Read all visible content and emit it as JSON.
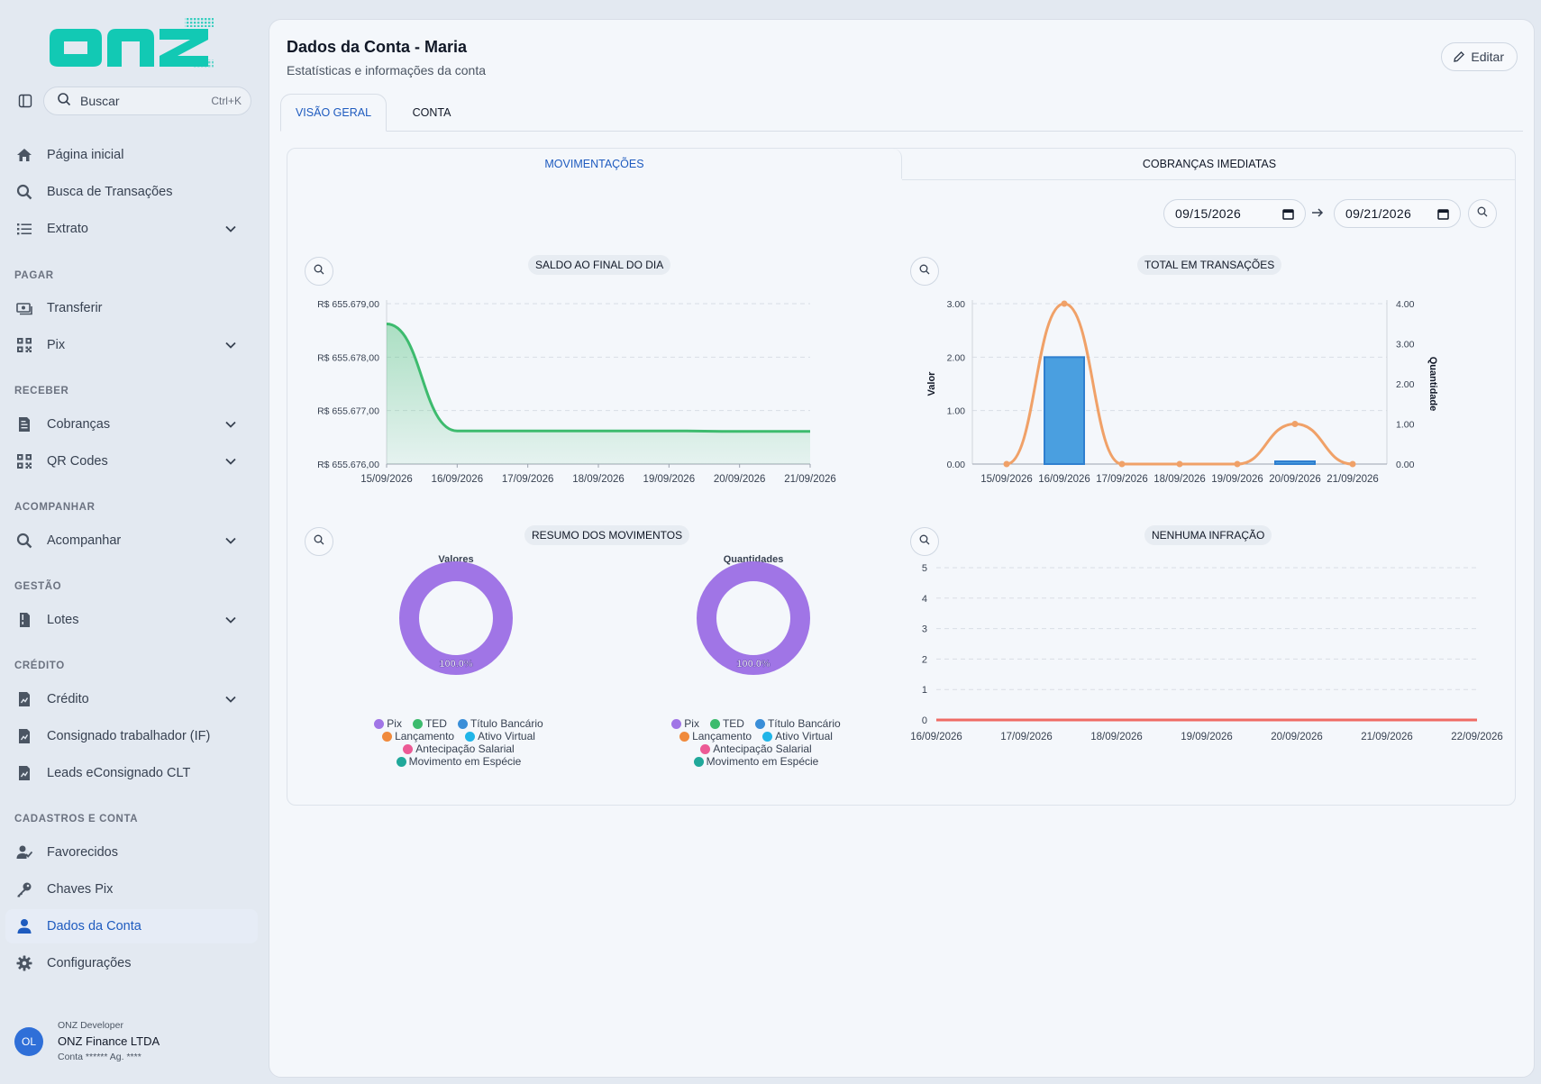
{
  "app": {
    "logo_text": "onz"
  },
  "search": {
    "placeholder": "Buscar",
    "shortcut": "Ctrl+K"
  },
  "sidebar": {
    "items": [
      {
        "label": "Página inicial",
        "icon": "home-icon"
      },
      {
        "label": "Busca de Transações",
        "icon": "search-icon"
      },
      {
        "label": "Extrato",
        "icon": "list-icon"
      },
      {
        "label": "Transferir",
        "icon": "money-transfer-icon"
      },
      {
        "label": "Pix",
        "icon": "qr-code-icon"
      },
      {
        "label": "Cobranças",
        "icon": "invoice-icon"
      },
      {
        "label": "QR Codes",
        "icon": "qr-code-icon"
      },
      {
        "label": "Acompanhar",
        "icon": "search-icon"
      },
      {
        "label": "Lotes",
        "icon": "file-stack-icon"
      },
      {
        "label": "Crédito",
        "icon": "credit-document-icon"
      },
      {
        "label": "Consignado trabalhador (IF)",
        "icon": "document-icon"
      },
      {
        "label": "Leads eConsignado CLT",
        "icon": "document-icon"
      },
      {
        "label": "Favorecidos",
        "icon": "user-check-icon"
      },
      {
        "label": "Chaves Pix",
        "icon": "key-icon"
      },
      {
        "label": "Dados da Conta",
        "icon": "user-icon"
      },
      {
        "label": "Configurações",
        "icon": "gear-icon"
      }
    ],
    "sections": [
      "PAGAR",
      "RECEBER",
      "ACOMPANHAR",
      "GESTÃO",
      "CRÉDITO",
      "CADASTROS E CONTA"
    ],
    "active": "Dados da Conta"
  },
  "user": {
    "initials": "OL",
    "role": "ONZ Developer",
    "org": "ONZ Finance LTDA",
    "account": "Conta ****** Ag. ****"
  },
  "header": {
    "title": "Dados da Conta - Maria",
    "subtitle": "Estatísticas e informações da conta",
    "edit_label": "Editar"
  },
  "tabs": [
    "VISÃO GERAL",
    "CONTA"
  ],
  "subtabs": [
    "MOVIMENTAÇÕES",
    "COBRANÇAS IMEDIATAS"
  ],
  "date_range": {
    "start": "09/15/2026",
    "end": "09/21/2026"
  },
  "colors": {
    "accent": "#1e5bbf",
    "logo": "#12c9b4",
    "balance_line": "#3dbb6e",
    "bar": "#4a9fe0",
    "count_line": "#f0a168",
    "infraction_line": "#ef6b64",
    "donut": "#a075e6"
  },
  "chart_data": [
    {
      "type": "area",
      "title": "SALDO AO FINAL DO DIA",
      "x": [
        "15/09/2026",
        "16/09/2026",
        "17/09/2026",
        "18/09/2026",
        "19/09/2026",
        "20/09/2026",
        "21/09/2026"
      ],
      "values": [
        655678.62,
        655676.62,
        655676.62,
        655676.62,
        655676.62,
        655676.61,
        655676.61
      ],
      "y_ticks": [
        "R$ 655.679,00",
        "R$ 655.678,00",
        "R$ 655.677,00",
        "R$ 655.676,00"
      ],
      "ylim": [
        655676,
        655679
      ],
      "grid": true
    },
    {
      "type": "bar",
      "title": "TOTAL EM TRANSAÇÕES",
      "x": [
        "15/09/2026",
        "16/09/2026",
        "17/09/2026",
        "18/09/2026",
        "19/09/2026",
        "20/09/2026",
        "21/09/2026"
      ],
      "series": [
        {
          "name": "Valor",
          "type": "bar",
          "values": [
            0,
            2.0,
            0,
            0,
            0,
            0.02,
            0
          ]
        },
        {
          "name": "Quantidade",
          "type": "line",
          "values": [
            0,
            4,
            0,
            0,
            0,
            1,
            0
          ]
        }
      ],
      "ylabel": "Valor",
      "y2label": "Quantidade",
      "y_ticks": [
        "3.00",
        "2.00",
        "1.00",
        "0.00"
      ],
      "y2_ticks": [
        "4.00",
        "3.00",
        "2.00",
        "1.00",
        "0.00"
      ],
      "ylim": [
        0,
        3
      ],
      "y2lim": [
        0,
        4
      ]
    },
    {
      "type": "pie",
      "title": "RESUMO DOS MOVIMENTOS",
      "charts": [
        {
          "subtitle": "Valores",
          "slices": [
            {
              "label": "Pix",
              "value": 100.0
            }
          ],
          "label_text": "100.0%"
        },
        {
          "subtitle": "Quantidades",
          "slices": [
            {
              "label": "Pix",
              "value": 100.0
            }
          ],
          "label_text": "100.0%"
        }
      ],
      "legend": [
        {
          "label": "Pix",
          "color": "#a075e6"
        },
        {
          "label": "TED",
          "color": "#3dbb6e"
        },
        {
          "label": "Título Bancário",
          "color": "#3a8ed8"
        },
        {
          "label": "Lançamento",
          "color": "#f08a3c"
        },
        {
          "label": "Ativo Virtual",
          "color": "#20b5e8"
        },
        {
          "label": "Antecipação Salarial",
          "color": "#ec5a95"
        },
        {
          "label": "Movimento em Espécie",
          "color": "#20a89a"
        }
      ]
    },
    {
      "type": "line",
      "title": "NENHUMA INFRAÇÃO",
      "x": [
        "16/09/2026",
        "17/09/2026",
        "18/09/2026",
        "19/09/2026",
        "20/09/2026",
        "21/09/2026",
        "22/09/2026"
      ],
      "values": [
        0,
        0,
        0,
        0,
        0,
        0,
        0
      ],
      "y_ticks": [
        "5",
        "4",
        "3",
        "2",
        "1",
        "0"
      ],
      "ylim": [
        0,
        5
      ]
    }
  ]
}
